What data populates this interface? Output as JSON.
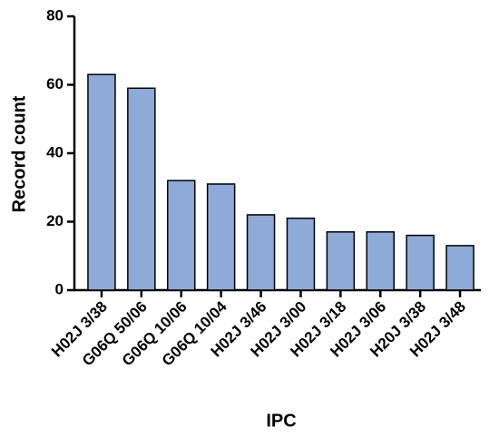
{
  "chart_data": {
    "type": "bar",
    "x_label": "IPC",
    "y_label": "Record count",
    "categories": [
      "H02J 3/38",
      "G06Q 50/06",
      "G06Q 10/06",
      "G06Q 10/04",
      "H02J 3/46",
      "H02J 3/00",
      "H02J 3/18",
      "H02J 3/06",
      "H20J 3/38",
      "H02J 3/48"
    ],
    "values": [
      63,
      59,
      32,
      31,
      22,
      21,
      17,
      17,
      16,
      13
    ],
    "color": "#8eaad8",
    "ylim": [
      0,
      80
    ],
    "yticks": [
      0,
      20,
      40,
      60,
      80
    ]
  }
}
